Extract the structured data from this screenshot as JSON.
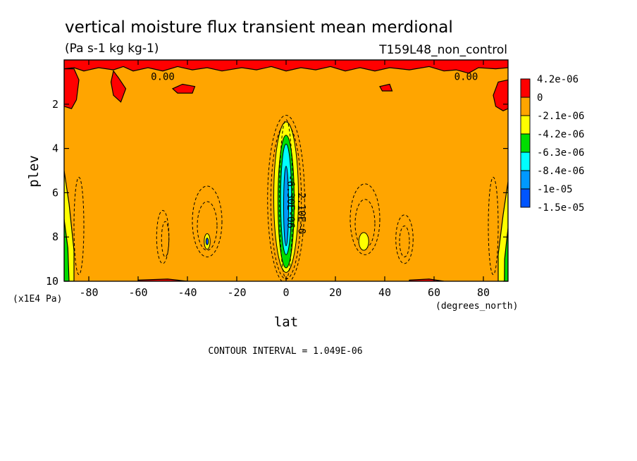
{
  "chart_data": {
    "type": "heatmap",
    "title": "vertical moisture flux transient mean merdional",
    "units": "(Pa s-1 kg kg-1)",
    "run_label": "T159L48_non_control",
    "xlabel": "lat",
    "x_units": "(degrees_north)",
    "ylabel": "plev",
    "y_units": "(x1E4 Pa)",
    "xlim": [
      -90,
      90
    ],
    "ylim": [
      0,
      10
    ],
    "y_inverted": true,
    "x_ticks": [
      {
        "v": -80,
        "label": "-80"
      },
      {
        "v": -60,
        "label": "-60"
      },
      {
        "v": -40,
        "label": "-40"
      },
      {
        "v": -20,
        "label": "-20"
      },
      {
        "v": 0,
        "label": "0"
      },
      {
        "v": 20,
        "label": "20"
      },
      {
        "v": 40,
        "label": "40"
      },
      {
        "v": 60,
        "label": "60"
      },
      {
        "v": 80,
        "label": "80"
      }
    ],
    "y_ticks": [
      {
        "v": 2,
        "label": "2"
      },
      {
        "v": 4,
        "label": "4"
      },
      {
        "v": 6,
        "label": "6"
      },
      {
        "v": 8,
        "label": "8"
      },
      {
        "v": 10,
        "label": "10"
      }
    ],
    "contour_interval_text": "CONTOUR INTERVAL = 1.049E-06",
    "contour_labels": [
      {
        "text": "0.00",
        "lat": -50,
        "plev": 0.4
      },
      {
        "text": "0.00",
        "lat": 73,
        "plev": 0.4
      },
      {
        "text": "-2.10E-0",
        "lat": 5,
        "plev": 6.8
      },
      {
        "text": "-6.30E-06",
        "lat": 0.5,
        "plev": 6.4
      }
    ],
    "colorbar": {
      "labels": [
        "4.2e-06",
        "0",
        "-2.1e-06",
        "-4.2e-06",
        "-6.3e-06",
        "-8.4e-06",
        "-1e-05",
        "-1.5e-05"
      ],
      "colors": [
        "#ff0000",
        "#ffa500",
        "#ffff00",
        "#00dd00",
        "#00ffff",
        "#0099ff",
        "#0055ff"
      ]
    },
    "background_level_color": "#ffa500",
    "regions": [
      {
        "level": "positive",
        "color": "#ff0000",
        "where": "surface layer near plev 0-1 and isolated patches near 90S, 90N and 10"
      },
      {
        "level": "-2.1e-06 to -4.2e-06",
        "color": "#ffff00",
        "where": "equatorial column plev 3-9.5; lat 32N plev 8; lat 32S plev 8; polar edges plev 6-10"
      },
      {
        "level": "-4.2e-06 to -6.3e-06",
        "color": "#00dd00",
        "where": "equatorial column plev 3.5-9.5"
      },
      {
        "level": "-6.3e-06 to -8.4e-06",
        "color": "#00ffff",
        "where": "equator plev 4-8.5"
      },
      {
        "level": "-8.4e-06 to -1e-05",
        "color": "#0099ff",
        "where": "equator plev 5-8"
      }
    ]
  }
}
